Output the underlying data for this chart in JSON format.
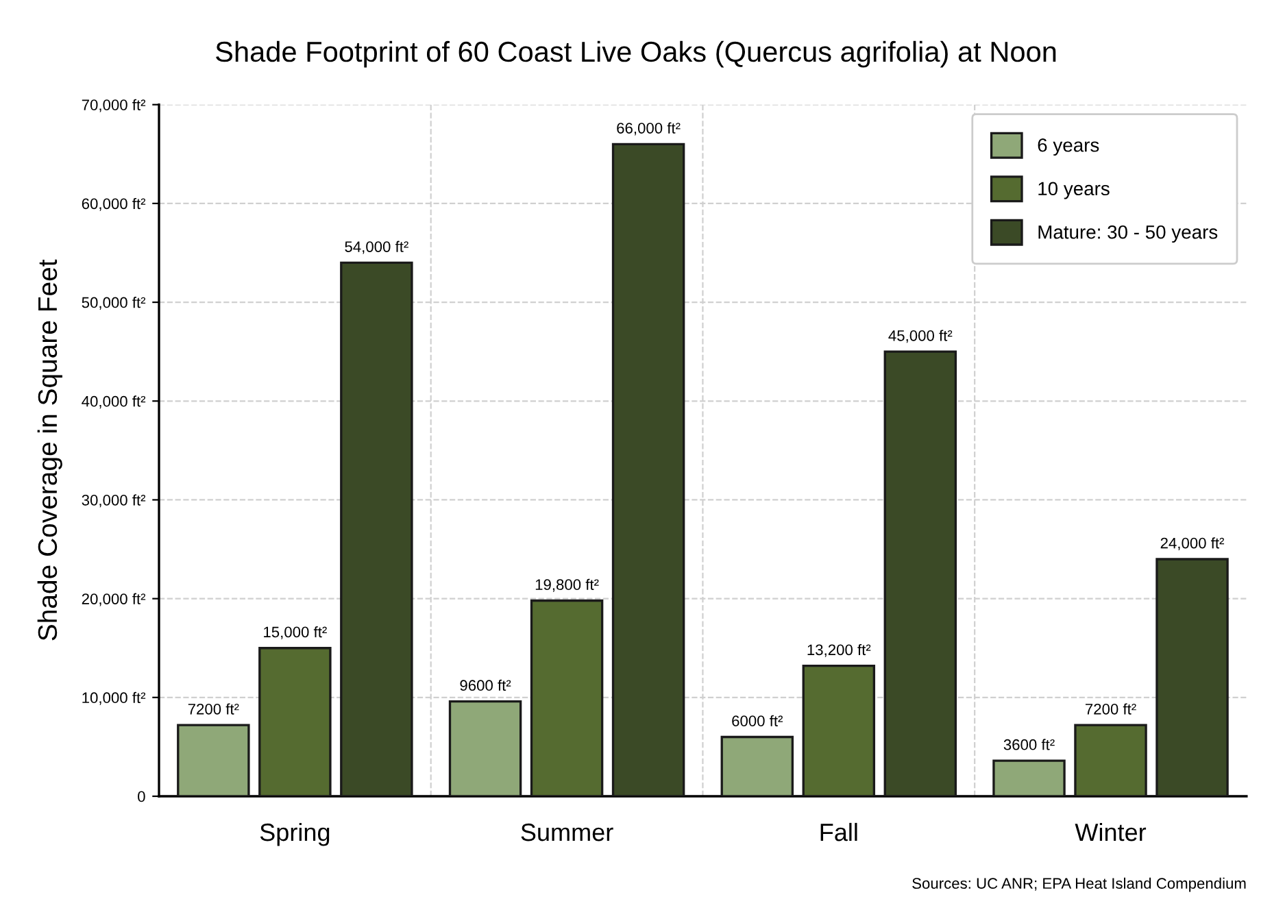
{
  "chart_data": {
    "type": "bar",
    "title": "Shade Footprint of 60 Coast Live Oaks (Quercus agrifolia) at Noon",
    "ylabel": "Shade Coverage in Square Feet",
    "categories": [
      "Spring",
      "Summer",
      "Fall",
      "Winter"
    ],
    "series": [
      {
        "name": "6 years",
        "color": "#8fa878",
        "values": [
          7200,
          9600,
          6000,
          3600
        ],
        "value_labels": [
          "7200 ft²",
          "9600 ft²",
          "6000 ft²",
          "3600 ft²"
        ]
      },
      {
        "name": "10 years",
        "color": "#556b30",
        "values": [
          15000,
          19800,
          13200,
          7200
        ],
        "value_labels": [
          "15,000 ft²",
          "19,800 ft²",
          "13,200 ft²",
          "7200 ft²"
        ]
      },
      {
        "name": "Mature: 30 - 50 years",
        "color": "#3b4a26",
        "values": [
          54000,
          66000,
          45000,
          24000
        ],
        "value_labels": [
          "54,000 ft²",
          "66,000 ft²",
          "45,000 ft²",
          "24,000 ft²"
        ]
      }
    ],
    "ylim": [
      0,
      70000
    ],
    "yticks": [
      0,
      {
        "value": 10000,
        "label": "10,000 ft²"
      },
      {
        "value": 20000,
        "label": "20,000 ft²"
      },
      {
        "value": 30000,
        "label": "30,000 ft²"
      },
      {
        "value": 40000,
        "label": "40,000 ft²"
      },
      {
        "value": 50000,
        "label": "50,000 ft²"
      },
      {
        "value": 60000,
        "label": "60,000 ft²"
      },
      {
        "value": 70000,
        "label": "70,000 ft²"
      }
    ],
    "grid": true,
    "legend": "top right",
    "annotations": [
      "Sources: UC ANR; EPA Heat Island Compendium"
    ]
  }
}
